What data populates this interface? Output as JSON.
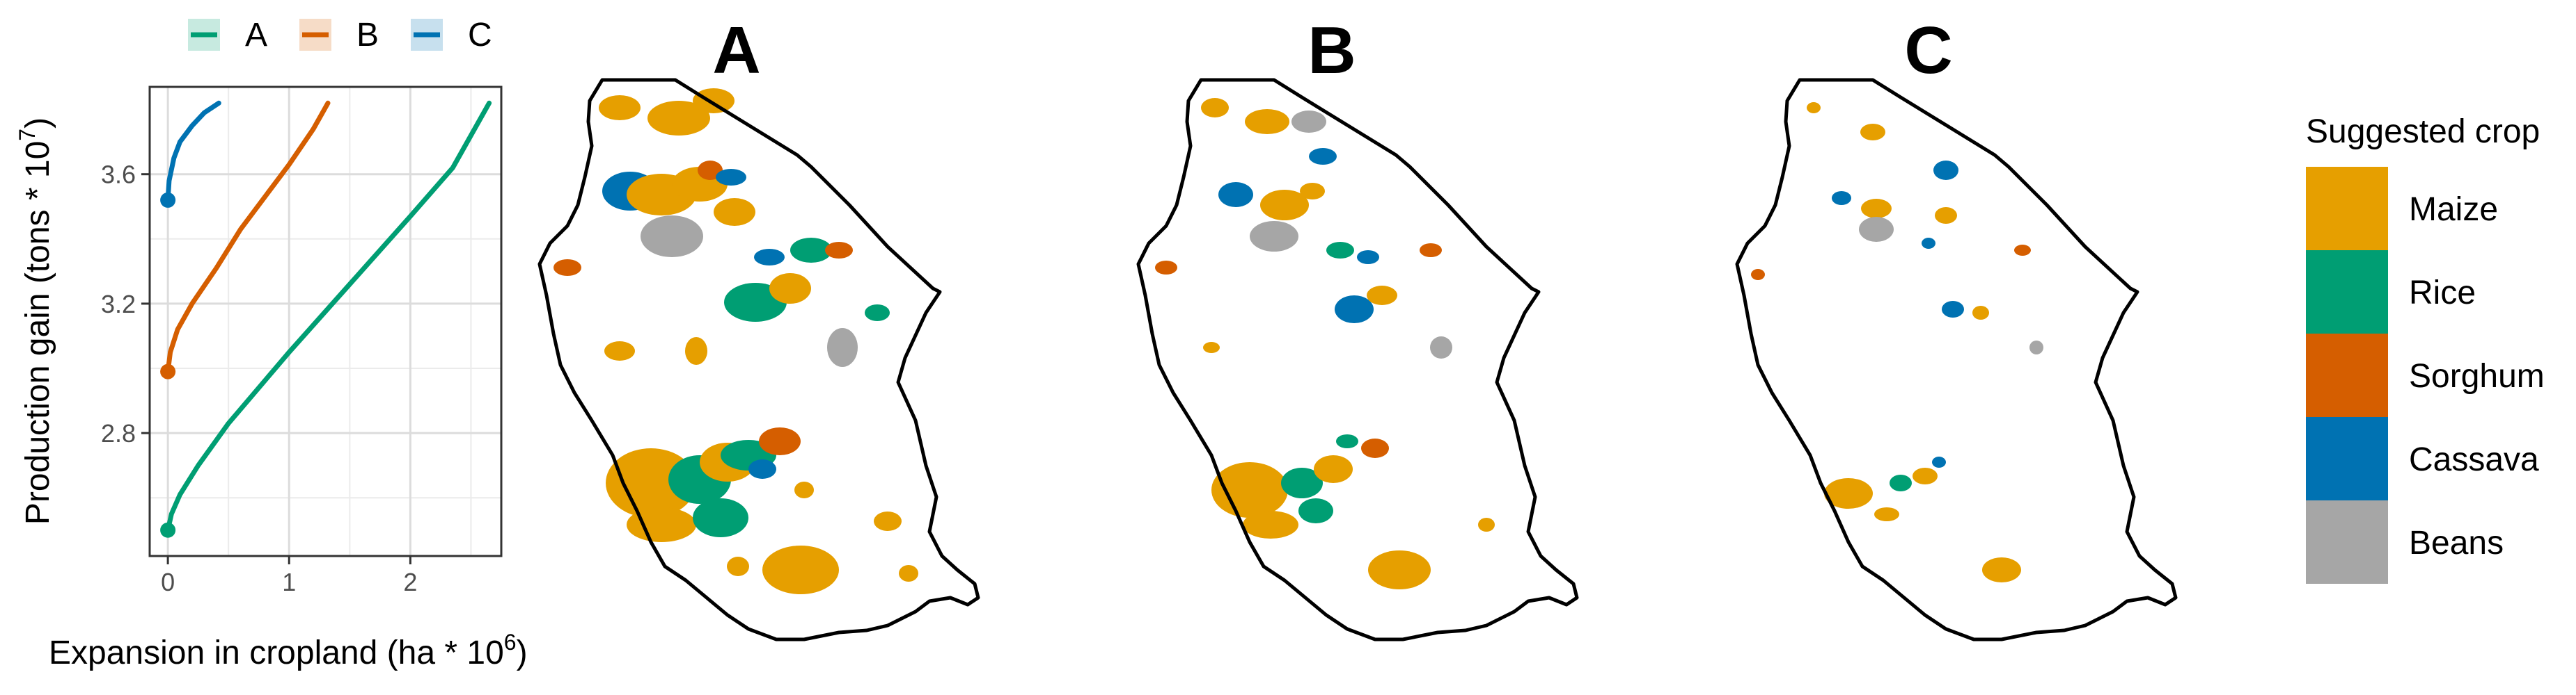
{
  "chart_data": [
    {
      "type": "line",
      "xlabel": "Expansion in cropland (ha * 10",
      "xlabel_sup": "6",
      "xlabel_close": ")",
      "ylabel": "Production gain (tons * 10",
      "ylabel_sup": "7",
      "ylabel_close": ")",
      "xlim": [
        -0.15,
        2.75
      ],
      "ylim": [
        2.42,
        3.87
      ],
      "x_ticks": [
        0,
        1,
        2
      ],
      "x_tick_labels": [
        "0",
        "1",
        "2"
      ],
      "y_ticks": [
        2.8,
        3.2,
        3.6
      ],
      "y_tick_labels": [
        "2.8",
        "3.2",
        "3.6"
      ],
      "grid": true,
      "legend_position": "top",
      "series": [
        {
          "name": "A",
          "color": "#009E73",
          "x": [
            0,
            0.03,
            0.1,
            0.25,
            0.5,
            1.0,
            1.5,
            2.0,
            2.35,
            2.65
          ],
          "y": [
            2.5,
            2.55,
            2.61,
            2.7,
            2.83,
            3.05,
            3.26,
            3.47,
            3.62,
            3.82
          ]
        },
        {
          "name": "B",
          "color": "#D55E00",
          "x": [
            0,
            0.02,
            0.08,
            0.2,
            0.4,
            0.6,
            0.8,
            1.0,
            1.2,
            1.32
          ],
          "y": [
            2.99,
            3.05,
            3.12,
            3.2,
            3.31,
            3.43,
            3.53,
            3.63,
            3.74,
            3.82
          ]
        },
        {
          "name": "C",
          "color": "#0072B2",
          "x": [
            0,
            0.01,
            0.05,
            0.1,
            0.2,
            0.3,
            0.42
          ],
          "y": [
            3.52,
            3.58,
            3.65,
            3.7,
            3.75,
            3.79,
            3.82
          ]
        }
      ]
    },
    {
      "type": "heatmap",
      "panels": [
        "A",
        "B",
        "C"
      ],
      "legend_title": "Suggested crop",
      "legend_position": "right",
      "categories": [
        {
          "name": "Maize",
          "color": "#E69F00"
        },
        {
          "name": "Rice",
          "color": "#009E73"
        },
        {
          "name": "Sorghum",
          "color": "#D55E00"
        },
        {
          "name": "Cassava",
          "color": "#0072B2"
        },
        {
          "name": "Beans",
          "color": "#A6A6A6"
        }
      ]
    }
  ]
}
